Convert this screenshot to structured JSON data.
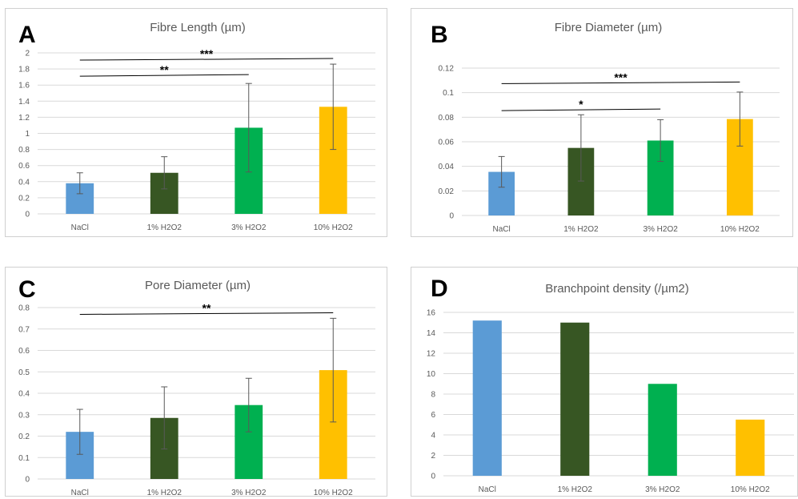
{
  "chart_data": [
    {
      "id": "A",
      "panel_label": "A",
      "type": "bar",
      "title": "Fibre Length (µm)",
      "categories": [
        "NaCl",
        "1% H2O2",
        "3% H2O2",
        "10% H2O2"
      ],
      "values": [
        0.38,
        0.51,
        1.07,
        1.33
      ],
      "errors": [
        0.13,
        0.2,
        0.55,
        0.53
      ],
      "colors": [
        "#5b9bd5",
        "#375623",
        "#00b050",
        "#ffc000"
      ],
      "ylim": [
        0,
        2
      ],
      "yticks": [
        "0",
        "0.2",
        "0.4",
        "0.6",
        "0.8",
        "1",
        "1.2",
        "1.4",
        "1.6",
        "1.8",
        "2"
      ],
      "grid": true,
      "significance": [
        {
          "from": 0,
          "to": 2,
          "label": "**",
          "level": 1.72
        },
        {
          "from": 0,
          "to": 3,
          "label": "***",
          "level": 1.92
        }
      ]
    },
    {
      "id": "B",
      "panel_label": "B",
      "type": "bar",
      "title": "Fibre Diameter (µm)",
      "categories": [
        "NaCl",
        "1% H2O2",
        "3% H2O2",
        "10% H2O2"
      ],
      "values": [
        0.0355,
        0.055,
        0.061,
        0.0785
      ],
      "errors": [
        0.0125,
        0.027,
        0.017,
        0.022
      ],
      "colors": [
        "#5b9bd5",
        "#375623",
        "#00b050",
        "#ffc000"
      ],
      "ylim": [
        0,
        0.12
      ],
      "yticks": [
        "0",
        "0.02",
        "0.04",
        "0.06",
        "0.08",
        "0.1",
        "0.12"
      ],
      "grid": true,
      "significance": [
        {
          "from": 0,
          "to": 2,
          "label": "*",
          "level": 0.086
        },
        {
          "from": 0,
          "to": 3,
          "label": "***",
          "level": 0.108
        }
      ]
    },
    {
      "id": "C",
      "panel_label": "C",
      "type": "bar",
      "title": "Pore Diameter (µm)",
      "categories": [
        "NaCl",
        "1% H2O2",
        "3% H2O2",
        "10% H2O2"
      ],
      "values": [
        0.22,
        0.285,
        0.345,
        0.508
      ],
      "errors": [
        0.105,
        0.145,
        0.125,
        0.242
      ],
      "colors": [
        "#5b9bd5",
        "#375623",
        "#00b050",
        "#ffc000"
      ],
      "ylim": [
        0,
        0.8
      ],
      "yticks": [
        "0",
        "0.1",
        "0.2",
        "0.3",
        "0.4",
        "0.5",
        "0.6",
        "0.7",
        "0.8"
      ],
      "grid": true,
      "significance": [
        {
          "from": 0,
          "to": 3,
          "label": "**",
          "level": 0.772
        }
      ]
    },
    {
      "id": "D",
      "panel_label": "D",
      "type": "bar",
      "title": "Branchpoint density (/µm2)",
      "categories": [
        "NaCl",
        "1% H2O2",
        "3% H2O2",
        "10% H2O2"
      ],
      "values": [
        15.2,
        15.0,
        9.0,
        5.5
      ],
      "errors": [],
      "colors": [
        "#5b9bd5",
        "#375623",
        "#00b050",
        "#ffc000"
      ],
      "ylim": [
        0,
        16
      ],
      "yticks": [
        "0",
        "2",
        "4",
        "6",
        "8",
        "10",
        "12",
        "14",
        "16"
      ],
      "grid": true,
      "significance": []
    }
  ]
}
